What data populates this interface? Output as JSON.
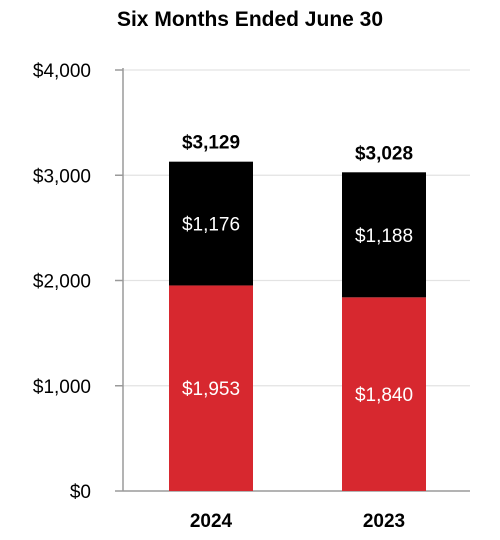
{
  "chart_data": {
    "type": "bar",
    "stacked": true,
    "title": "Six Months Ended June 30",
    "categories": [
      "2024",
      "2023"
    ],
    "series": [
      {
        "values": [
          1953,
          1840
        ],
        "labels": [
          "$1,953",
          "$1,840"
        ],
        "color": "#d7282f"
      },
      {
        "values": [
          1176,
          1188
        ],
        "labels": [
          "$1,176",
          "$1,188"
        ],
        "color": "#000000"
      }
    ],
    "totals": [
      3129,
      3028
    ],
    "total_labels": [
      "$3,129",
      "$3,028"
    ],
    "ylim": [
      0,
      4000
    ],
    "yticks": [
      0,
      1000,
      2000,
      3000,
      4000
    ],
    "ytick_labels": [
      "$0",
      "$1,000",
      "$2,000",
      "$3,000",
      "$4,000"
    ],
    "grid": true,
    "legend": "none"
  },
  "colors": {
    "axis": "#9a9a9a",
    "grid": "#e3e3e3",
    "segment_text": "#ffffff",
    "label_text": "#000000"
  }
}
